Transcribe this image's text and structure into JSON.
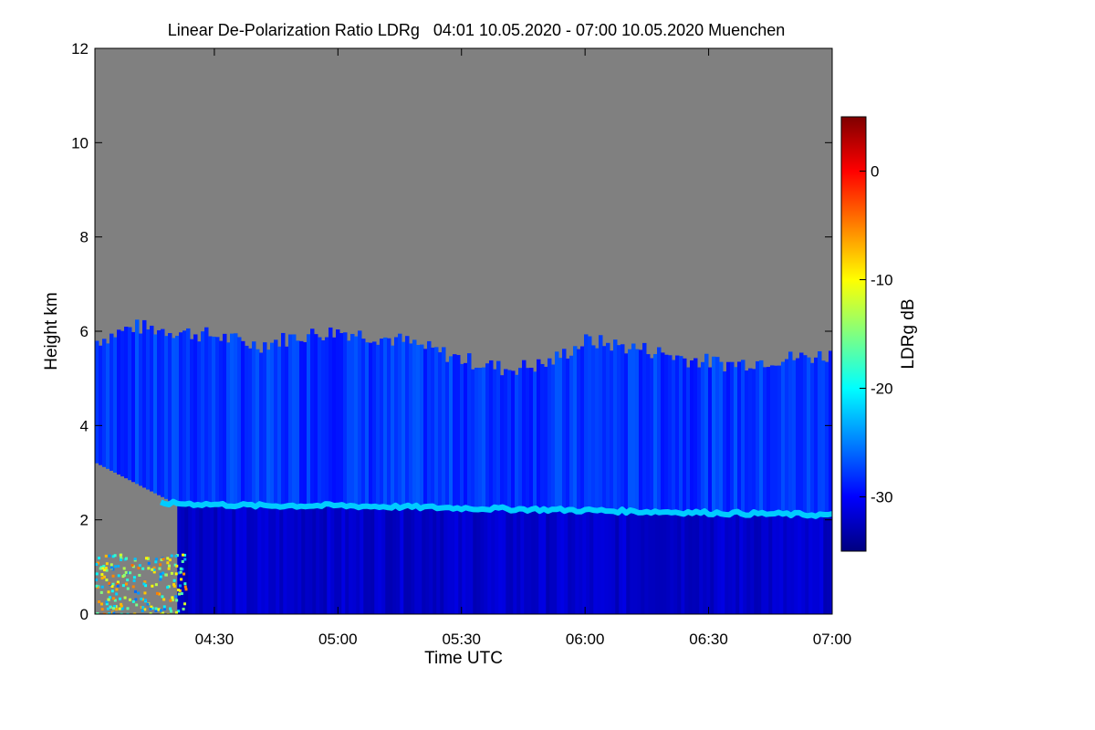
{
  "chart_data": {
    "type": "heatmap",
    "title": "Linear De-Polarization Ratio LDRg   04:01 10.05.2020 - 07:00 10.05.2020 Muenchen",
    "xlabel": "Time UTC",
    "ylabel": "Height km",
    "x_ticks": [
      "04:30",
      "05:00",
      "05:30",
      "06:00",
      "06:30",
      "07:00"
    ],
    "x_tick_values_min": [
      270,
      300,
      330,
      360,
      390,
      420
    ],
    "xlim_min": [
      241,
      420
    ],
    "y_ticks": [
      "0",
      "2",
      "4",
      "6",
      "8",
      "10",
      "12"
    ],
    "ylim": [
      0,
      12
    ],
    "colorbar": {
      "label": "LDRg dB",
      "range": [
        -35,
        5
      ],
      "ticks": [
        "0",
        "-10",
        "-20",
        "-30"
      ],
      "tick_values": [
        0,
        -10,
        -20,
        -30
      ],
      "colors": [
        "#00007f",
        "#0000ff",
        "#0080ff",
        "#00ffff",
        "#80ff80",
        "#ffff00",
        "#ff8000",
        "#ff0000",
        "#7f0000"
      ]
    },
    "no_data_color": "#808080",
    "features": {
      "cloud_top_km": [
        5.8,
        6.1,
        6.0,
        5.9,
        5.7,
        5.9,
        6.0,
        5.8,
        5.4,
        5.2,
        5.3,
        5.8,
        5.6,
        5.4,
        5.3,
        5.4,
        5.5
      ],
      "cloud_top_times_min": [
        241,
        250,
        260,
        270,
        280,
        290,
        300,
        315,
        330,
        340,
        350,
        360,
        375,
        385,
        395,
        405,
        420
      ],
      "melting_layer_km": [
        2.35,
        2.3,
        2.3,
        2.25,
        2.2,
        2.15,
        2.1
      ],
      "melting_layer_times_min": [
        260,
        280,
        300,
        330,
        360,
        390,
        420
      ],
      "melting_layer_ldr_db": -22,
      "rain_below_ldr_db": -32,
      "ice_cloud_ldr_db": -28,
      "clutter_ldr_db": -15,
      "rain_start_min": 261
    }
  }
}
